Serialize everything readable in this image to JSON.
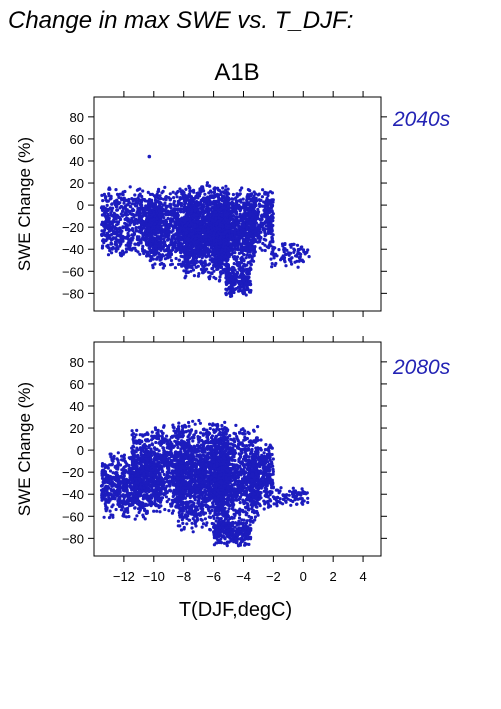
{
  "title": "Change in max SWE vs. T_DJF:",
  "scenario": "A1B",
  "colors": {
    "points": "#1c1cbe",
    "period_label": "#2323b4",
    "axis": "#000000"
  },
  "chart_data": [
    {
      "type": "scatter",
      "panel_label": "2040s",
      "ylabel": "SWE Change (%)",
      "xlabel": "T(DJF,degC)",
      "xlim": [
        -14.0,
        5.2
      ],
      "ylim": [
        -96,
        98
      ],
      "xticks": [
        -12,
        -10,
        -8,
        -6,
        -4,
        -2,
        0,
        2,
        4
      ],
      "yticks": [
        -80,
        -60,
        -40,
        -20,
        0,
        20,
        40,
        60,
        80
      ],
      "x_tick_labels_shown": false,
      "grid": false,
      "clusters": [
        {
          "x": [
            -13.5,
            -9.5
          ],
          "y": [
            -50,
            18
          ],
          "count": 700
        },
        {
          "x": [
            -10.5,
            -7.0
          ],
          "y": [
            -60,
            18
          ],
          "count": 900
        },
        {
          "x": [
            -8.0,
            -5.0
          ],
          "y": [
            -70,
            22
          ],
          "count": 1400
        },
        {
          "x": [
            -6.0,
            -3.2
          ],
          "y": [
            -60,
            18
          ],
          "count": 900
        },
        {
          "x": [
            -5.2,
            -3.5
          ],
          "y": [
            -85,
            -50
          ],
          "count": 250
        },
        {
          "x": [
            -3.8,
            -2.0
          ],
          "y": [
            -45,
            18
          ],
          "count": 350
        },
        {
          "x": [
            -2.2,
            0.4
          ],
          "y": [
            -58,
            -33
          ],
          "count": 90
        }
      ],
      "outliers": [
        {
          "x": -10.3,
          "y": 44
        }
      ]
    },
    {
      "type": "scatter",
      "panel_label": "2080s",
      "ylabel": "SWE Change (%)",
      "xlabel": "T(DJF,degC)",
      "xlim": [
        -14.0,
        5.2
      ],
      "ylim": [
        -96,
        98
      ],
      "xticks": [
        -12,
        -10,
        -8,
        -6,
        -4,
        -2,
        0,
        2,
        4
      ],
      "yticks": [
        -80,
        -60,
        -40,
        -20,
        0,
        20,
        40,
        60,
        80
      ],
      "x_tick_labels": [
        "−12",
        "−10",
        "−8",
        "−6",
        "−4",
        "−2",
        "0",
        "2",
        "4"
      ],
      "y_tick_labels": [
        "−80",
        "−60",
        "−40",
        "−20",
        "0",
        "20",
        "40",
        "60",
        "80"
      ],
      "grid": false,
      "clusters": [
        {
          "x": [
            -13.5,
            -9.5
          ],
          "y": [
            -65,
            0
          ],
          "count": 700
        },
        {
          "x": [
            -11.5,
            -8.0
          ],
          "y": [
            -60,
            25
          ],
          "count": 900
        },
        {
          "x": [
            -8.5,
            -5.0
          ],
          "y": [
            -75,
            30
          ],
          "count": 1500
        },
        {
          "x": [
            -6.0,
            -3.0
          ],
          "y": [
            -70,
            25
          ],
          "count": 900
        },
        {
          "x": [
            -6.0,
            -3.5
          ],
          "y": [
            -88,
            -60
          ],
          "count": 300
        },
        {
          "x": [
            -3.5,
            -2.0
          ],
          "y": [
            -55,
            10
          ],
          "count": 300
        },
        {
          "x": [
            -2.0,
            0.3
          ],
          "y": [
            -52,
            -33
          ],
          "count": 80
        }
      ],
      "outliers": []
    }
  ]
}
